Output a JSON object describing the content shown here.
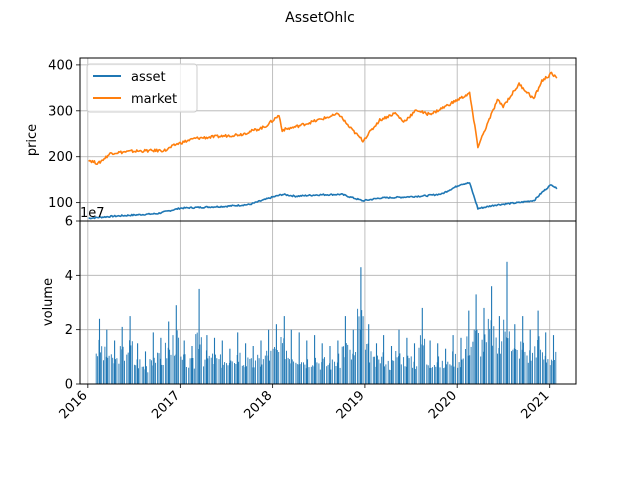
{
  "chart_data": {
    "type": "line",
    "title": "AssetOhlc",
    "colors": {
      "asset": "#1f77b4",
      "market": "#ff7f0e",
      "volume": "#1f77b4",
      "grid": "#b0b0b0"
    },
    "grid": true,
    "legend_placement": "top-left",
    "xlim": [
      "2015-12-01",
      "2021-04-15"
    ],
    "x_ticks": [
      "2016",
      "2017",
      "2018",
      "2019",
      "2020",
      "2021"
    ],
    "price_panel": {
      "ylabel": "price",
      "ylim": [
        60,
        415
      ],
      "y_ticks": [
        "100",
        "200",
        "300",
        "400"
      ],
      "series": [
        {
          "name": "asset",
          "points": [
            [
              "2016-01-04",
              66
            ],
            [
              "2016-04-01",
              70
            ],
            [
              "2016-07-01",
              73
            ],
            [
              "2016-10-01",
              76
            ],
            [
              "2017-01-01",
              88
            ],
            [
              "2017-04-01",
              90
            ],
            [
              "2017-07-01",
              92
            ],
            [
              "2017-10-01",
              96
            ],
            [
              "2018-01-01",
              112
            ],
            [
              "2018-02-10",
              118
            ],
            [
              "2018-04-01",
              114
            ],
            [
              "2018-07-01",
              117
            ],
            [
              "2018-10-01",
              118
            ],
            [
              "2018-12-24",
              104
            ],
            [
              "2019-03-01",
              110
            ],
            [
              "2019-06-01",
              112
            ],
            [
              "2019-09-01",
              115
            ],
            [
              "2019-11-01",
              119
            ],
            [
              "2020-01-15",
              140
            ],
            [
              "2020-02-19",
              143
            ],
            [
              "2020-03-23",
              87
            ],
            [
              "2020-06-01",
              95
            ],
            [
              "2020-09-01",
              100
            ],
            [
              "2020-11-01",
              105
            ],
            [
              "2020-12-01",
              122
            ],
            [
              "2021-01-08",
              140
            ],
            [
              "2021-01-29",
              130
            ]
          ]
        },
        {
          "name": "market",
          "points": [
            [
              "2016-01-04",
              193
            ],
            [
              "2016-02-11",
              185
            ],
            [
              "2016-04-01",
              208
            ],
            [
              "2016-07-01",
              212
            ],
            [
              "2016-11-04",
              214
            ],
            [
              "2016-12-15",
              227
            ],
            [
              "2017-03-01",
              240
            ],
            [
              "2017-06-01",
              244
            ],
            [
              "2017-09-01",
              249
            ],
            [
              "2017-12-01",
              265
            ],
            [
              "2018-01-26",
              290
            ],
            [
              "2018-02-08",
              258
            ],
            [
              "2018-04-01",
              265
            ],
            [
              "2018-07-01",
              280
            ],
            [
              "2018-09-20",
              293
            ],
            [
              "2018-10-29",
              266
            ],
            [
              "2018-12-24",
              235
            ],
            [
              "2019-03-01",
              280
            ],
            [
              "2019-05-01",
              295
            ],
            [
              "2019-06-03",
              276
            ],
            [
              "2019-07-26",
              302
            ],
            [
              "2019-09-01",
              293
            ],
            [
              "2019-10-01",
              296
            ],
            [
              "2019-12-31",
              323
            ],
            [
              "2020-02-19",
              338
            ],
            [
              "2020-03-23",
              222
            ],
            [
              "2020-06-08",
              323
            ],
            [
              "2020-07-01",
              310
            ],
            [
              "2020-09-02",
              358
            ],
            [
              "2020-10-30",
              326
            ],
            [
              "2020-12-01",
              365
            ],
            [
              "2021-01-08",
              381
            ],
            [
              "2021-01-29",
              371
            ]
          ]
        }
      ]
    },
    "volume_panel": {
      "type": "bar",
      "ylabel": "volume",
      "offset_text": "1e7",
      "ylim": [
        0,
        6
      ],
      "y_ticks": [
        "0",
        "2",
        "4",
        "6"
      ],
      "series_name": "volume",
      "bars": [
        [
          "2016-02",
          2.4
        ],
        [
          "2016-03",
          2.0
        ],
        [
          "2016-04",
          1.6
        ],
        [
          "2016-05",
          2.1
        ],
        [
          "2016-06",
          2.5
        ],
        [
          "2016-07",
          1.5
        ],
        [
          "2016-08",
          1.2
        ],
        [
          "2016-09",
          1.9
        ],
        [
          "2016-10",
          1.7
        ],
        [
          "2016-11",
          2.3
        ],
        [
          "2016-12",
          2.9
        ],
        [
          "2017-01",
          1.6
        ],
        [
          "2017-02",
          1.4
        ],
        [
          "2017-03",
          3.5
        ],
        [
          "2017-04",
          1.8
        ],
        [
          "2017-05",
          1.7
        ],
        [
          "2017-06",
          1.6
        ],
        [
          "2017-07",
          1.3
        ],
        [
          "2017-08",
          1.9
        ],
        [
          "2017-09",
          1.5
        ],
        [
          "2017-10",
          1.4
        ],
        [
          "2017-11",
          1.6
        ],
        [
          "2017-12",
          2.0
        ],
        [
          "2018-01",
          2.2
        ],
        [
          "2018-02",
          2.5
        ],
        [
          "2018-03",
          2.0
        ],
        [
          "2018-04",
          1.9
        ],
        [
          "2018-05",
          1.6
        ],
        [
          "2018-06",
          1.8
        ],
        [
          "2018-07",
          1.5
        ],
        [
          "2018-08",
          1.4
        ],
        [
          "2018-09",
          1.6
        ],
        [
          "2018-10",
          2.5
        ],
        [
          "2018-11",
          2.0
        ],
        [
          "2018-12",
          4.3
        ],
        [
          "2019-01",
          2.2
        ],
        [
          "2019-02",
          1.5
        ],
        [
          "2019-03",
          1.8
        ],
        [
          "2019-04",
          1.4
        ],
        [
          "2019-05",
          2.0
        ],
        [
          "2019-06",
          1.7
        ],
        [
          "2019-07",
          1.5
        ],
        [
          "2019-08",
          2.8
        ],
        [
          "2019-09",
          1.6
        ],
        [
          "2019-10",
          1.5
        ],
        [
          "2019-11",
          1.3
        ],
        [
          "2019-12",
          1.8
        ],
        [
          "2020-01",
          1.7
        ],
        [
          "2020-02",
          2.7
        ],
        [
          "2020-03",
          3.3
        ],
        [
          "2020-04",
          2.8
        ],
        [
          "2020-05",
          3.6
        ],
        [
          "2020-06",
          2.5
        ],
        [
          "2020-07",
          4.5
        ],
        [
          "2020-08",
          2.2
        ],
        [
          "2020-09",
          2.5
        ],
        [
          "2020-10",
          2.0
        ],
        [
          "2020-11",
          2.7
        ],
        [
          "2020-12",
          1.9
        ],
        [
          "2021-01",
          1.8
        ]
      ]
    }
  }
}
